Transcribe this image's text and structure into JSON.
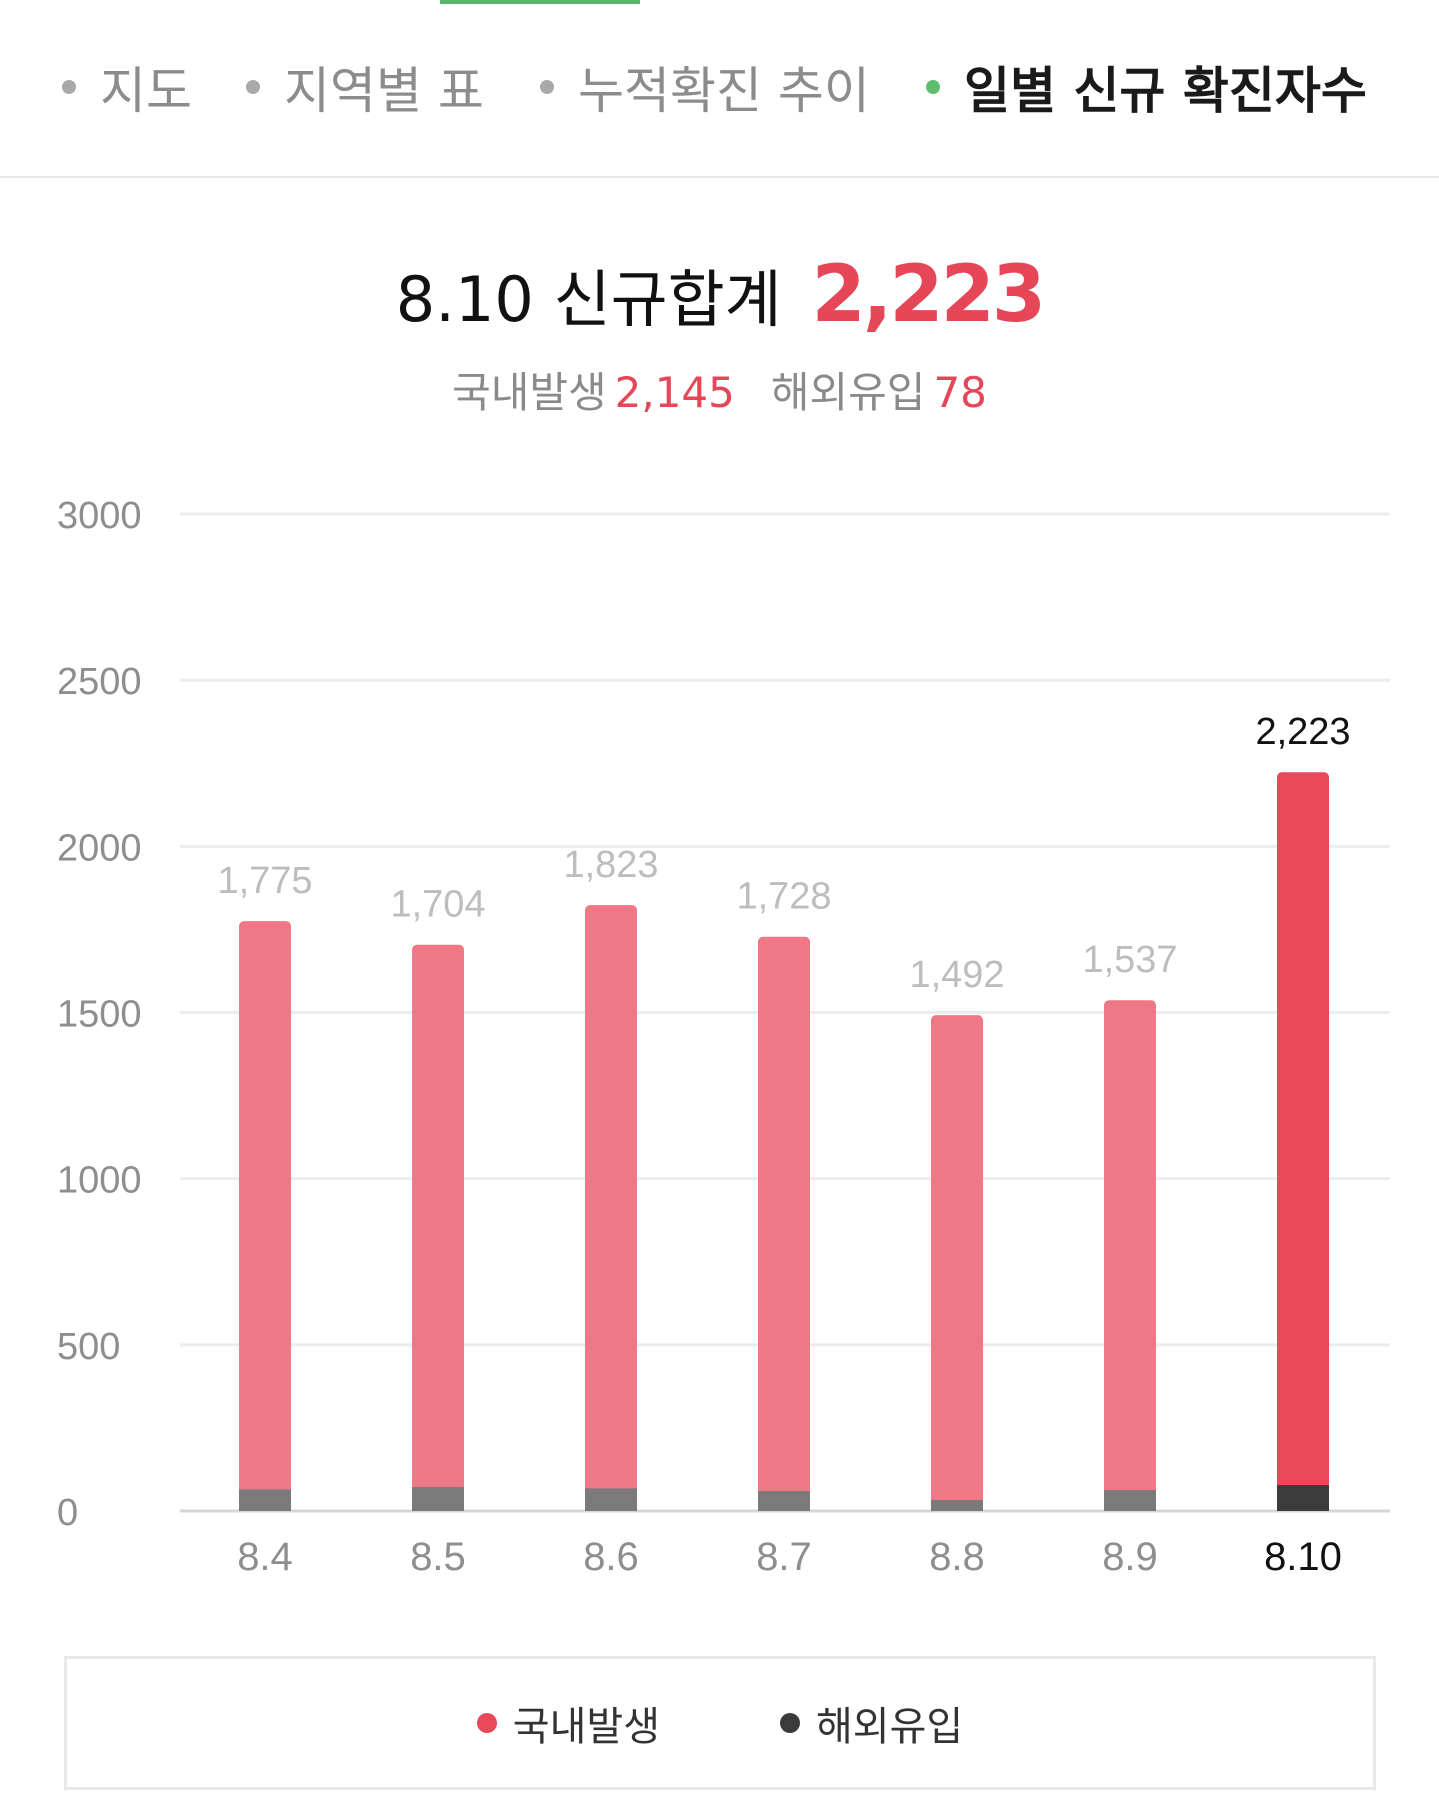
{
  "tabs": [
    {
      "label": "지도",
      "active": false
    },
    {
      "label": "지역별 표",
      "active": false
    },
    {
      "label": "누적확진 추이",
      "active": false
    },
    {
      "label": "일별 신규 확진자수",
      "active": true
    }
  ],
  "summary": {
    "date": "8.10",
    "title": "신규합계",
    "total": "2,223",
    "domestic_label": "국내발생",
    "domestic_value": "2,145",
    "overseas_label": "해외유입",
    "overseas_value": "78"
  },
  "colors": {
    "domestic": "#ee7886",
    "domestic_highlight": "#e84859",
    "overseas": "#7a7a7a",
    "overseas_highlight": "#3b3b3b",
    "accent_green": "#57b86a"
  },
  "chart_data": {
    "type": "bar",
    "stacked": true,
    "categories": [
      "8.4",
      "8.5",
      "8.6",
      "8.7",
      "8.8",
      "8.9",
      "8.10"
    ],
    "series": [
      {
        "name": "국내발생",
        "values": [
          1710,
          1632,
          1755,
          1668,
          1459,
          1474,
          2145
        ]
      },
      {
        "name": "해외유입",
        "values": [
          65,
          72,
          68,
          60,
          33,
          63,
          78
        ]
      }
    ],
    "totals": [
      1775,
      1704,
      1823,
      1728,
      1492,
      1537,
      2223
    ],
    "total_labels": [
      "1,775",
      "1,704",
      "1,823",
      "1,728",
      "1,492",
      "1,537",
      "2,223"
    ],
    "highlight_index": 6,
    "ylim": [
      0,
      3000
    ],
    "yticks": [
      0,
      500,
      1000,
      1500,
      2000,
      2500,
      3000
    ],
    "grid": true,
    "legend_position": "bottom"
  }
}
